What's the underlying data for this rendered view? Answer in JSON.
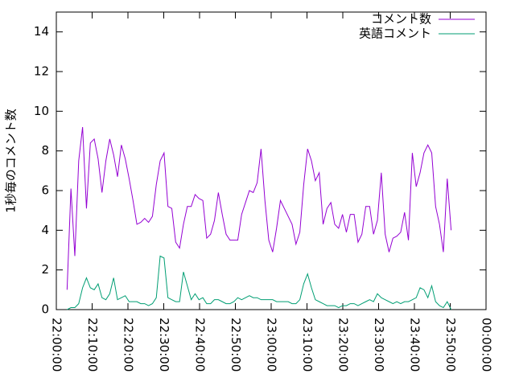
{
  "chart_data": {
    "type": "line",
    "ylabel": "1秒毎のコメント数",
    "xlim": [
      "22:00:00",
      "00:00:00"
    ],
    "xticks": [
      "22:00:00",
      "22:10:00",
      "22:20:00",
      "22:30:00",
      "22:40:00",
      "22:50:00",
      "23:00:00",
      "23:10:00",
      "23:20:00",
      "23:30:00",
      "23:40:00",
      "23:50:00",
      "00:00:00"
    ],
    "ylim": [
      0,
      15
    ],
    "yticks": [
      0,
      2,
      4,
      6,
      8,
      10,
      12,
      14
    ],
    "legend": "top-right",
    "x": [
      "22:03:00",
      "22:04:05",
      "22:05:10",
      "22:06:15",
      "22:07:20",
      "22:08:25",
      "22:09:30",
      "22:10:35",
      "22:11:40",
      "22:12:45",
      "22:13:50",
      "22:14:55",
      "22:16:00",
      "22:17:05",
      "22:18:10",
      "22:19:15",
      "22:20:20",
      "22:21:25",
      "22:22:30",
      "22:23:35",
      "22:24:40",
      "22:25:45",
      "22:26:50",
      "22:27:55",
      "22:29:00",
      "22:30:05",
      "22:31:10",
      "22:32:15",
      "22:33:20",
      "22:34:25",
      "22:35:30",
      "22:36:35",
      "22:37:40",
      "22:38:45",
      "22:39:50",
      "22:40:55",
      "22:42:00",
      "22:43:05",
      "22:44:10",
      "22:45:15",
      "22:46:20",
      "22:47:25",
      "22:48:30",
      "22:49:35",
      "22:50:40",
      "22:51:45",
      "22:52:50",
      "22:53:55",
      "22:55:00",
      "22:56:05",
      "22:57:10",
      "22:58:15",
      "22:59:20",
      "23:00:25",
      "23:01:30",
      "23:02:35",
      "23:03:40",
      "23:04:45",
      "23:05:50",
      "23:06:55",
      "23:08:00",
      "23:09:05",
      "23:10:10",
      "23:11:15",
      "23:12:20",
      "23:13:25",
      "23:14:30",
      "23:15:35",
      "23:16:40",
      "23:17:45",
      "23:18:50",
      "23:19:55",
      "23:21:00",
      "23:22:05",
      "23:23:10",
      "23:24:15",
      "23:25:20",
      "23:26:25",
      "23:27:30",
      "23:28:35",
      "23:29:40",
      "23:30:45",
      "23:31:50",
      "23:32:55",
      "23:34:00",
      "23:35:05",
      "23:36:10",
      "23:37:15",
      "23:38:20",
      "23:39:25",
      "23:40:30",
      "23:41:35",
      "23:42:40",
      "23:43:45",
      "23:44:50",
      "23:45:55",
      "23:47:00",
      "23:48:05",
      "23:49:10",
      "23:50:15"
    ],
    "series": [
      {
        "name": "コメント数",
        "color": "#9400d3",
        "values": [
          1.0,
          6.1,
          2.7,
          7.5,
          9.2,
          5.1,
          8.4,
          8.6,
          7.6,
          5.9,
          7.5,
          8.6,
          7.8,
          6.7,
          8.3,
          7.6,
          6.6,
          5.5,
          4.3,
          4.4,
          4.6,
          4.4,
          4.7,
          6.3,
          7.5,
          7.9,
          5.2,
          5.1,
          3.4,
          3.1,
          4.3,
          5.2,
          5.2,
          5.8,
          5.6,
          5.5,
          3.6,
          3.8,
          4.5,
          5.9,
          4.8,
          3.8,
          3.5,
          3.5,
          3.5,
          4.8,
          5.4,
          6.0,
          5.9,
          6.4,
          8.1,
          5.5,
          3.5,
          2.9,
          4.1,
          5.5,
          5.1,
          4.7,
          4.3,
          3.3,
          3.9,
          6.3,
          8.1,
          7.5,
          6.5,
          6.9,
          4.3,
          5.1,
          5.4,
          4.3,
          4.1,
          4.8,
          3.9,
          4.8,
          4.8,
          3.4,
          3.8,
          5.2,
          5.2,
          3.8,
          4.5,
          6.9,
          3.8,
          2.9,
          3.6,
          3.7,
          3.9,
          4.9,
          3.5,
          7.9,
          6.2,
          6.9,
          7.9,
          8.3,
          7.9,
          5.2,
          4.3,
          2.9,
          6.6,
          4.0
        ]
      },
      {
        "name": "英語コメント",
        "color": "#009e73",
        "values": [
          0,
          0.1,
          0.1,
          0.3,
          1.1,
          1.6,
          1.1,
          1.0,
          1.3,
          0.6,
          0.5,
          0.8,
          1.6,
          0.5,
          0.6,
          0.7,
          0.4,
          0.4,
          0.4,
          0.3,
          0.3,
          0.2,
          0.3,
          0.6,
          2.7,
          2.6,
          0.6,
          0.5,
          0.4,
          0.4,
          1.9,
          1.2,
          0.5,
          0.8,
          0.5,
          0.6,
          0.3,
          0.3,
          0.5,
          0.5,
          0.4,
          0.3,
          0.3,
          0.4,
          0.6,
          0.5,
          0.6,
          0.7,
          0.6,
          0.6,
          0.5,
          0.5,
          0.5,
          0.5,
          0.4,
          0.4,
          0.4,
          0.4,
          0.3,
          0.3,
          0.5,
          1.3,
          1.8,
          1.1,
          0.5,
          0.4,
          0.3,
          0.2,
          0.2,
          0.2,
          0.1,
          0.2,
          0.2,
          0.3,
          0.3,
          0.2,
          0.3,
          0.4,
          0.5,
          0.4,
          0.8,
          0.6,
          0.5,
          0.4,
          0.3,
          0.4,
          0.3,
          0.4,
          0.4,
          0.5,
          0.6,
          1.1,
          1.0,
          0.6,
          1.2,
          0.4,
          0.2,
          0.1,
          0.4,
          0.0
        ]
      }
    ]
  }
}
